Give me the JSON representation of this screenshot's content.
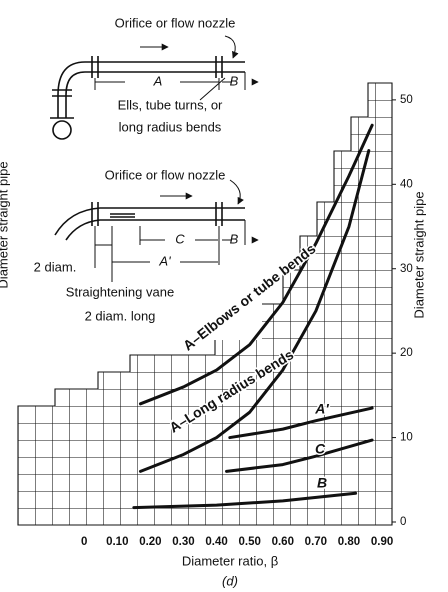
{
  "chart_data": {
    "type": "line",
    "ylabel": "Diameter straight pipe",
    "xlabel": "Diameter ratio, β",
    "caption": "(d)",
    "xlim": [
      -0.2,
      0.93
    ],
    "ylim": [
      0,
      52
    ],
    "xticks": [
      0,
      {
        "value": 0.1,
        "label": "0.10"
      },
      {
        "value": 0.2,
        "label": "0.20"
      },
      {
        "value": 0.3,
        "label": "0.30"
      },
      {
        "value": 0.4,
        "label": "0.40"
      },
      {
        "value": 0.5,
        "label": "0.50"
      },
      {
        "value": 0.6,
        "label": "0.60"
      },
      {
        "value": 0.7,
        "label": "0.70"
      },
      {
        "value": 0.8,
        "label": "0.80"
      },
      {
        "value": 0.9,
        "label": "0.90"
      }
    ],
    "yticks": [
      0,
      10,
      20,
      30,
      40,
      50
    ],
    "color": "#111111",
    "series": [
      {
        "name": "A–Elbows or tube bends",
        "x": [
          0.17,
          0.3,
          0.4,
          0.5,
          0.6,
          0.7,
          0.8,
          0.87
        ],
        "values": [
          14,
          16,
          18,
          21,
          26,
          33,
          41,
          47
        ]
      },
      {
        "name": "A–Long radius bends",
        "x": [
          0.17,
          0.3,
          0.4,
          0.5,
          0.6,
          0.7,
          0.8,
          0.86
        ],
        "values": [
          6,
          8,
          10,
          13,
          18,
          25,
          35,
          44
        ]
      },
      {
        "name": "A'",
        "x": [
          0.44,
          0.6,
          0.7,
          0.87
        ],
        "values": [
          10,
          11,
          12,
          13.5
        ]
      },
      {
        "name": "C",
        "x": [
          0.43,
          0.6,
          0.7,
          0.87
        ],
        "values": [
          6,
          6.8,
          7.8,
          9.7
        ]
      },
      {
        "name": "B",
        "x": [
          0.15,
          0.4,
          0.6,
          0.82
        ],
        "values": [
          1.7,
          2,
          2.5,
          3.4
        ]
      }
    ]
  },
  "diagram": {
    "top": {
      "label": "Orifice or flow nozzle",
      "dim_a": "A",
      "dim_b": "B",
      "note_1": "Ells, tube turns, or",
      "note_2": "long radius bends"
    },
    "bottom": {
      "label": "Orifice or flow nozzle",
      "dim_c": "C",
      "dim_b": "B",
      "dim_a": "A'",
      "note_diam": "2 diam.",
      "vane_1": "Straightening vane",
      "vane_2": "2 diam. long"
    }
  }
}
